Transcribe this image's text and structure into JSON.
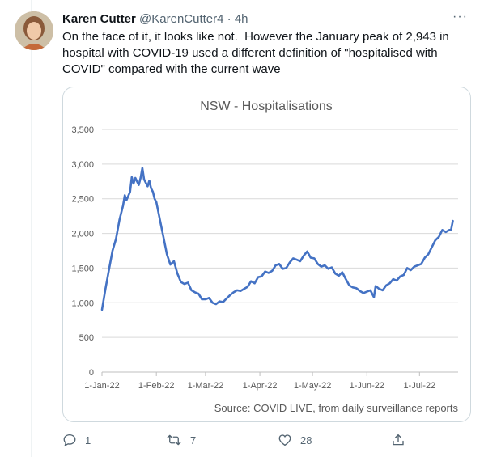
{
  "tweet": {
    "author_name": "Karen Cutter",
    "author_handle": "@KarenCutter4",
    "separator": "·",
    "time": "4h",
    "more_label": "···",
    "text": "On the face of it, it looks like not.  However the January peak of 2,943 in hospital with COVID-19 used a different definition of \"hospitalised with COVID\" compared with the current wave"
  },
  "actions": {
    "reply_count": "1",
    "retweet_count": "7",
    "like_count": "28"
  },
  "icons": {
    "more": "more-dots-icon",
    "reply": "reply-icon",
    "retweet": "retweet-icon",
    "like": "heart-icon",
    "share": "share-icon"
  },
  "colors": {
    "line": "#4472C4",
    "muted_text": "#536471",
    "grid": "#d9d9d9",
    "chart_text": "#595959"
  },
  "chart_data": {
    "type": "line",
    "title": "NSW - Hospitalisations",
    "source": "Source: COVID LIVE, from daily surveillance reports",
    "ylim": [
      0,
      3500
    ],
    "y_ticks": [
      0,
      500,
      1000,
      1500,
      2000,
      2500,
      3000,
      3500
    ],
    "y_tick_labels": [
      "0",
      "500",
      "1,000",
      "1,500",
      "2,000",
      "2,500",
      "3,000",
      "3,500"
    ],
    "x_tick_labels": [
      "1-Jan-22",
      "1-Feb-22",
      "1-Mar-22",
      "1-Apr-22",
      "1-May-22",
      "1-Jun-22",
      "1-Jul-22"
    ],
    "grid": true,
    "series": [
      {
        "values": [
          [
            "2022-01-01",
            900
          ],
          [
            "2022-01-03",
            1200
          ],
          [
            "2022-01-05",
            1480
          ],
          [
            "2022-01-07",
            1750
          ],
          [
            "2022-01-09",
            1920
          ],
          [
            "2022-01-11",
            2200
          ],
          [
            "2022-01-13",
            2400
          ],
          [
            "2022-01-14",
            2550
          ],
          [
            "2022-01-15",
            2480
          ],
          [
            "2022-01-17",
            2600
          ],
          [
            "2022-01-18",
            2810
          ],
          [
            "2022-01-19",
            2720
          ],
          [
            "2022-01-20",
            2800
          ],
          [
            "2022-01-21",
            2750
          ],
          [
            "2022-01-22",
            2700
          ],
          [
            "2022-01-23",
            2800
          ],
          [
            "2022-01-24",
            2943
          ],
          [
            "2022-01-25",
            2780
          ],
          [
            "2022-01-26",
            2730
          ],
          [
            "2022-01-27",
            2680
          ],
          [
            "2022-01-28",
            2760
          ],
          [
            "2022-01-29",
            2650
          ],
          [
            "2022-01-30",
            2600
          ],
          [
            "2022-01-31",
            2500
          ],
          [
            "2022-02-01",
            2450
          ],
          [
            "2022-02-03",
            2200
          ],
          [
            "2022-02-05",
            1950
          ],
          [
            "2022-02-07",
            1700
          ],
          [
            "2022-02-09",
            1550
          ],
          [
            "2022-02-11",
            1600
          ],
          [
            "2022-02-13",
            1420
          ],
          [
            "2022-02-15",
            1300
          ],
          [
            "2022-02-17",
            1270
          ],
          [
            "2022-02-19",
            1290
          ],
          [
            "2022-02-21",
            1180
          ],
          [
            "2022-02-23",
            1150
          ],
          [
            "2022-02-25",
            1130
          ],
          [
            "2022-02-27",
            1050
          ],
          [
            "2022-03-01",
            1050
          ],
          [
            "2022-03-03",
            1070
          ],
          [
            "2022-03-05",
            1000
          ],
          [
            "2022-03-07",
            980
          ],
          [
            "2022-03-09",
            1020
          ],
          [
            "2022-03-11",
            1010
          ],
          [
            "2022-03-13",
            1060
          ],
          [
            "2022-03-15",
            1110
          ],
          [
            "2022-03-17",
            1150
          ],
          [
            "2022-03-19",
            1180
          ],
          [
            "2022-03-21",
            1170
          ],
          [
            "2022-03-23",
            1200
          ],
          [
            "2022-03-25",
            1230
          ],
          [
            "2022-03-27",
            1310
          ],
          [
            "2022-03-29",
            1280
          ],
          [
            "2022-03-31",
            1370
          ],
          [
            "2022-04-02",
            1380
          ],
          [
            "2022-04-04",
            1450
          ],
          [
            "2022-04-06",
            1430
          ],
          [
            "2022-04-08",
            1460
          ],
          [
            "2022-04-10",
            1540
          ],
          [
            "2022-04-12",
            1560
          ],
          [
            "2022-04-14",
            1490
          ],
          [
            "2022-04-16",
            1500
          ],
          [
            "2022-04-18",
            1580
          ],
          [
            "2022-04-20",
            1640
          ],
          [
            "2022-04-22",
            1620
          ],
          [
            "2022-04-24",
            1600
          ],
          [
            "2022-04-26",
            1680
          ],
          [
            "2022-04-28",
            1740
          ],
          [
            "2022-04-30",
            1650
          ],
          [
            "2022-05-02",
            1640
          ],
          [
            "2022-05-04",
            1560
          ],
          [
            "2022-05-06",
            1520
          ],
          [
            "2022-05-08",
            1540
          ],
          [
            "2022-05-10",
            1490
          ],
          [
            "2022-05-12",
            1510
          ],
          [
            "2022-05-14",
            1420
          ],
          [
            "2022-05-16",
            1390
          ],
          [
            "2022-05-18",
            1440
          ],
          [
            "2022-05-20",
            1340
          ],
          [
            "2022-05-22",
            1250
          ],
          [
            "2022-05-24",
            1220
          ],
          [
            "2022-05-26",
            1210
          ],
          [
            "2022-05-28",
            1170
          ],
          [
            "2022-05-30",
            1140
          ],
          [
            "2022-06-01",
            1160
          ],
          [
            "2022-06-03",
            1180
          ],
          [
            "2022-06-05",
            1080
          ],
          [
            "2022-06-06",
            1240
          ],
          [
            "2022-06-08",
            1200
          ],
          [
            "2022-06-10",
            1180
          ],
          [
            "2022-06-12",
            1250
          ],
          [
            "2022-06-14",
            1280
          ],
          [
            "2022-06-16",
            1340
          ],
          [
            "2022-06-18",
            1320
          ],
          [
            "2022-06-20",
            1380
          ],
          [
            "2022-06-22",
            1400
          ],
          [
            "2022-06-24",
            1500
          ],
          [
            "2022-06-26",
            1470
          ],
          [
            "2022-06-28",
            1520
          ],
          [
            "2022-06-30",
            1540
          ],
          [
            "2022-07-02",
            1560
          ],
          [
            "2022-07-04",
            1650
          ],
          [
            "2022-07-06",
            1700
          ],
          [
            "2022-07-08",
            1800
          ],
          [
            "2022-07-10",
            1900
          ],
          [
            "2022-07-12",
            1950
          ],
          [
            "2022-07-14",
            2050
          ],
          [
            "2022-07-16",
            2020
          ],
          [
            "2022-07-18",
            2050
          ],
          [
            "2022-07-19",
            2050
          ],
          [
            "2022-07-20",
            2180
          ]
        ]
      }
    ]
  }
}
